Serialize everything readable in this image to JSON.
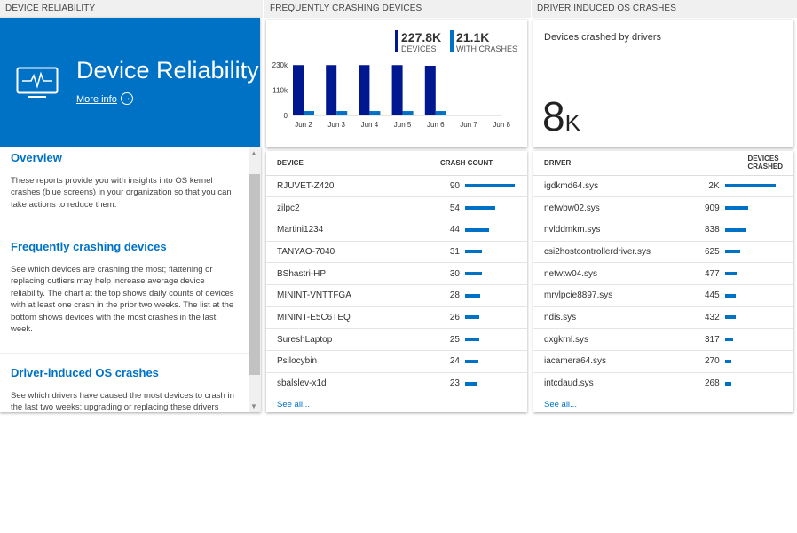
{
  "headers": {
    "left": "DEVICE RELIABILITY",
    "middle": "FREQUENTLY CRASHING DEVICES",
    "right": "DRIVER INDUCED OS CRASHES"
  },
  "hero": {
    "title": "Device Reliability",
    "more_info": "More info",
    "icon": "monitor-pulse-icon",
    "color": "#0072c6"
  },
  "info": [
    {
      "title": "Overview",
      "text": "These reports provide you with insights into OS kernel crashes (blue screens) in your organization so that you can take actions to reduce them."
    },
    {
      "title": "Frequently crashing devices",
      "text": "See which devices are crashing the most; flattening or replacing outliers may help increase average device reliability. The chart at the top shows daily counts of devices with at least one crash in the prior two weeks. The list at the bottom shows devices with the most crashes in the last week."
    },
    {
      "title": "Driver-induced OS crashes",
      "text": "See which drivers have caused the most devices to crash in the last two weeks; upgrading or replacing these drivers"
    }
  ],
  "legend": {
    "devices_value": "227.8K",
    "devices_label": "DEVICES",
    "crashes_value": "21.1K",
    "crashes_label": "WITH CRASHES"
  },
  "chart_data": {
    "type": "bar",
    "categories": [
      "Jun 2",
      "Jun 3",
      "Jun 4",
      "Jun 5",
      "Jun 6",
      "Jun 7",
      "Jun 8"
    ],
    "series": [
      {
        "name": "DEVICES",
        "color": "#00188f",
        "values": [
          229000,
          229000,
          229000,
          229000,
          226000,
          null,
          null
        ]
      },
      {
        "name": "WITH CRASHES",
        "color": "#0072c6",
        "values": [
          20000,
          20000,
          20000,
          20000,
          20000,
          null,
          null
        ]
      }
    ],
    "yticks": [
      "0",
      "110k",
      "230k"
    ],
    "ylim": [
      0,
      230000
    ]
  },
  "driver_card": {
    "label": "Devices crashed by drivers",
    "value": "8",
    "unit": "K"
  },
  "devices_table": {
    "headers": [
      "DEVICE",
      "CRASH COUNT"
    ],
    "rows": [
      [
        "RJUVET-Z420",
        90
      ],
      [
        "zilpc2",
        54
      ],
      [
        "Martini1234",
        44
      ],
      [
        "TANYAO-7040",
        31
      ],
      [
        "BShastri-HP",
        30
      ],
      [
        "MININT-VNTTFGA",
        28
      ],
      [
        "MININT-E5C6TEQ",
        26
      ],
      [
        "SureshLaptop",
        25
      ],
      [
        "Psilocybin",
        24
      ],
      [
        "sbalslev-x1d",
        23
      ]
    ],
    "see_all": "See all..."
  },
  "drivers_table": {
    "headers": [
      "DRIVER",
      "DEVICES CRASHED"
    ],
    "rows": [
      [
        "igdkmd64.sys",
        "2K",
        2000
      ],
      [
        "netwbw02.sys",
        "909",
        909
      ],
      [
        "nvlddmkm.sys",
        "838",
        838
      ],
      [
        "csi2hostcontrollerdriver.sys",
        "625",
        625
      ],
      [
        "netwtw04.sys",
        "477",
        477
      ],
      [
        "mrvlpcie8897.sys",
        "445",
        445
      ],
      [
        "ndis.sys",
        "432",
        432
      ],
      [
        "dxgkrnl.sys",
        "317",
        317
      ],
      [
        "iacamera64.sys",
        "270",
        270
      ],
      [
        "intcdaud.sys",
        "268",
        268
      ]
    ],
    "see_all": "See all..."
  }
}
